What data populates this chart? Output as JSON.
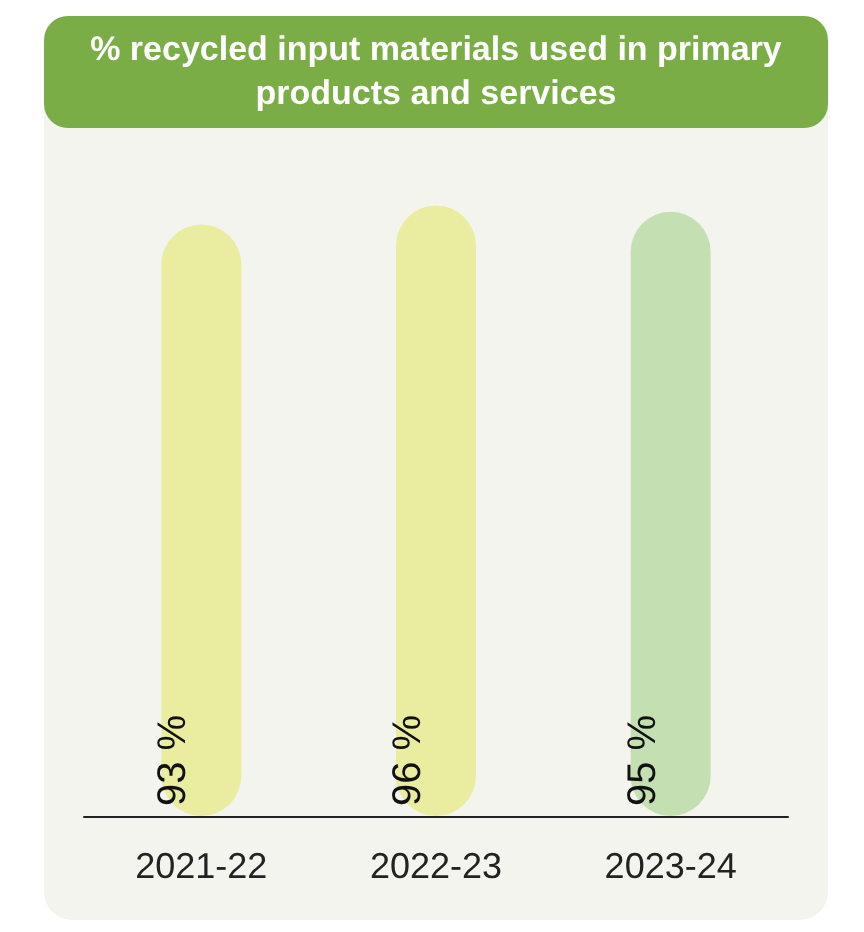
{
  "chart_data": {
    "type": "bar",
    "title": "% recycled input materials used in primary products and services",
    "categories": [
      "2021-22",
      "2022-23",
      "2023-24"
    ],
    "values": [
      93,
      96,
      95
    ],
    "colors": [
      "#eaeda0",
      "#eaeda0",
      "#c4e0b2"
    ],
    "value_labels": [
      "93 %",
      "96 %",
      "95 %"
    ]
  }
}
